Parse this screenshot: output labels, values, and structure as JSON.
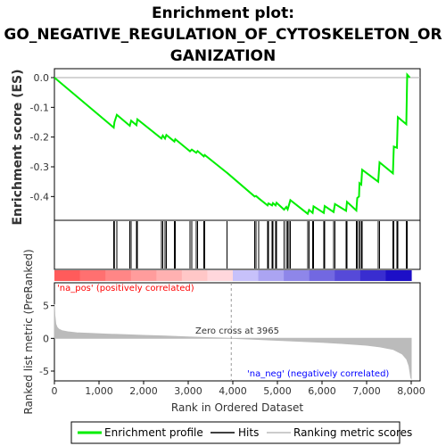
{
  "title_lines": [
    "Enrichment plot:",
    "GO_NEGATIVE_REGULATION_OF_CYTOSKELETON_OR",
    "GANIZATION"
  ],
  "colors": {
    "enrichment_line": "#00ee00",
    "hits": "#000000",
    "metric_fill": "#bbbbbb",
    "pos_label": "#ff0000",
    "neg_label": "#0000ff",
    "zero_line": "#999999"
  },
  "chart_data": [
    {
      "type": "line",
      "panel": "enrichment",
      "ylabel": "Enrichment score (ES)",
      "xlim": [
        0,
        8200
      ],
      "ylim": [
        -0.48,
        0.03
      ],
      "yticks": [
        0.0,
        -0.1,
        -0.2,
        -0.3,
        -0.4
      ],
      "ytick_labels": [
        "0.0",
        "-0.1",
        "-0.2",
        "-0.3",
        "-0.4"
      ],
      "grid": false,
      "series": [
        {
          "points": [
            [
              0,
              0.0
            ],
            [
              1330,
              -0.168
            ],
            [
              1345,
              -0.15
            ],
            [
              1400,
              -0.125
            ],
            [
              1690,
              -0.162
            ],
            [
              1720,
              -0.145
            ],
            [
              1840,
              -0.16
            ],
            [
              1860,
              -0.14
            ],
            [
              2400,
              -0.205
            ],
            [
              2430,
              -0.195
            ],
            [
              2480,
              -0.205
            ],
            [
              2510,
              -0.193
            ],
            [
              2690,
              -0.215
            ],
            [
              2710,
              -0.207
            ],
            [
              3040,
              -0.248
            ],
            [
              3080,
              -0.242
            ],
            [
              3180,
              -0.253
            ],
            [
              3210,
              -0.247
            ],
            [
              3350,
              -0.265
            ],
            [
              3370,
              -0.26
            ],
            [
              3870,
              -0.32
            ],
            [
              4490,
              -0.4
            ],
            [
              4520,
              -0.398
            ],
            [
              4580,
              -0.406
            ],
            [
              4780,
              -0.43
            ],
            [
              4800,
              -0.423
            ],
            [
              4880,
              -0.43
            ],
            [
              4900,
              -0.422
            ],
            [
              4960,
              -0.43
            ],
            [
              4980,
              -0.421
            ],
            [
              5150,
              -0.444
            ],
            [
              5200,
              -0.435
            ],
            [
              5230,
              -0.443
            ],
            [
              5260,
              -0.428
            ],
            [
              5290,
              -0.412
            ],
            [
              5680,
              -0.458
            ],
            [
              5710,
              -0.445
            ],
            [
              5790,
              -0.455
            ],
            [
              5810,
              -0.433
            ],
            [
              6040,
              -0.455
            ],
            [
              6060,
              -0.432
            ],
            [
              6260,
              -0.452
            ],
            [
              6290,
              -0.425
            ],
            [
              6540,
              -0.448
            ],
            [
              6560,
              -0.418
            ],
            [
              6770,
              -0.447
            ],
            [
              6790,
              -0.405
            ],
            [
              6830,
              -0.4
            ],
            [
              6840,
              -0.355
            ],
            [
              6880,
              -0.36
            ],
            [
              6900,
              -0.31
            ],
            [
              7260,
              -0.35
            ],
            [
              7290,
              -0.285
            ],
            [
              7590,
              -0.322
            ],
            [
              7610,
              -0.232
            ],
            [
              7680,
              -0.236
            ],
            [
              7700,
              -0.133
            ],
            [
              7890,
              -0.157
            ],
            [
              7910,
              0.01
            ],
            [
              7970,
              0.0
            ]
          ]
        }
      ]
    },
    {
      "type": "scatter",
      "panel": "hits",
      "legend_name": "Hits",
      "x": [
        1330,
        1345,
        1400,
        1690,
        1720,
        1840,
        1860,
        2400,
        2430,
        2480,
        2510,
        2690,
        2710,
        3040,
        3080,
        3180,
        3210,
        3350,
        3370,
        3870,
        4490,
        4520,
        4580,
        4780,
        4800,
        4880,
        4900,
        4960,
        4980,
        5150,
        5200,
        5230,
        5260,
        5290,
        5680,
        5710,
        5790,
        5810,
        6040,
        6060,
        6260,
        6290,
        6540,
        6560,
        6770,
        6790,
        6830,
        6840,
        6880,
        6900,
        7260,
        7290,
        7590,
        7610,
        7680,
        7700,
        7890,
        7910
      ]
    },
    {
      "type": "area",
      "panel": "ranked_metric",
      "ylabel": "Ranked list metric (PreRanked)",
      "xlabel": "Rank in Ordered Dataset",
      "xlim": [
        0,
        8200
      ],
      "ylim": [
        -6.5,
        8.5
      ],
      "yticks": [
        5,
        0,
        -5
      ],
      "ytick_labels": [
        "5",
        "0",
        "-5"
      ],
      "xticks": [
        0,
        1000,
        2000,
        3000,
        4000,
        5000,
        6000,
        7000,
        8000
      ],
      "xtick_labels": [
        "0",
        "1,000",
        "2,000",
        "3,000",
        "4,000",
        "5,000",
        "6,000",
        "7,000",
        "8,000"
      ],
      "series": [
        {
          "legend_name": "Ranking metric scores",
          "x": [
            0,
            10,
            30,
            60,
            100,
            180,
            300,
            500,
            800,
            1200,
            1600,
            2000,
            2500,
            3000,
            3500,
            3965,
            4500,
            5000,
            5500,
            6000,
            6500,
            7000,
            7300,
            7600,
            7800,
            7900,
            7950,
            7980,
            7990,
            8000
          ],
          "values": [
            5.2,
            3.5,
            2.2,
            1.7,
            1.4,
            1.15,
            1.0,
            0.85,
            0.75,
            0.65,
            0.55,
            0.45,
            0.35,
            0.22,
            0.1,
            0.0,
            -0.15,
            -0.3,
            -0.45,
            -0.6,
            -0.8,
            -1.05,
            -1.3,
            -1.7,
            -2.4,
            -3.2,
            -4.2,
            -5.5,
            -6.0,
            -6.1
          ]
        }
      ]
    }
  ],
  "annotations": {
    "zero_cross": "Zero cross at 3965",
    "pos_label": "'na_pos' (positively correlated)",
    "neg_label": "'na_neg' (negatively correlated)"
  },
  "legend": {
    "items": [
      {
        "label": "Enrichment profile",
        "color": "#00ee00"
      },
      {
        "label": "Hits",
        "color": "#000000"
      },
      {
        "label": "Ranking metric scores",
        "color": "#bbbbbb"
      }
    ]
  }
}
